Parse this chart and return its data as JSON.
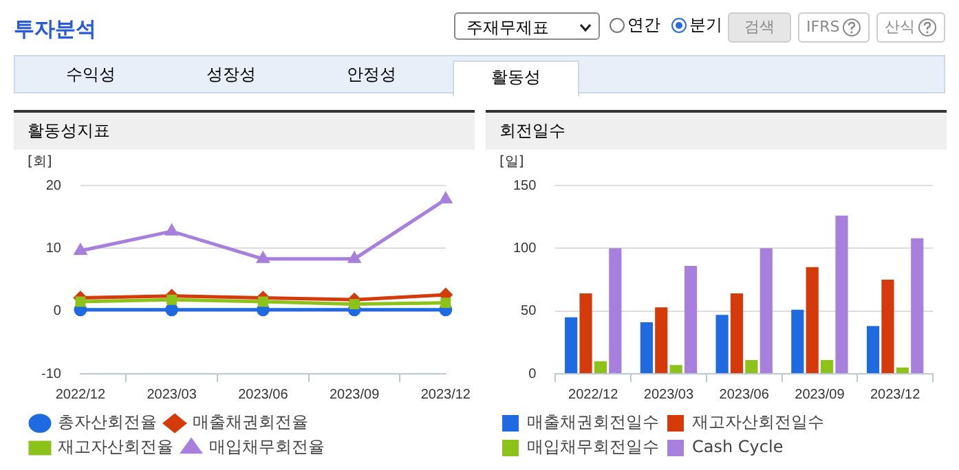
{
  "chart_data": [
    {
      "type": "line",
      "title": "활동성지표",
      "ylabel": "[회]",
      "annotations": [
        "투자분석",
        "주재무제표",
        "연간",
        "분기",
        "검색",
        "IFRS",
        "산식",
        "수익성",
        "성장성",
        "안정성",
        "활동성"
      ],
      "categories": [
        "2022/12",
        "2023/03",
        "2023/06",
        "2023/09",
        "2023/12"
      ],
      "series": [
        {
          "name": "총자산회전율",
          "color": "#1f6ae0",
          "marker": "circle",
          "values": [
            0.2,
            0.2,
            0.2,
            0.2,
            0.2
          ]
        },
        {
          "name": "매출채권회전율",
          "color": "#d43a0a",
          "marker": "diamond",
          "values": [
            2.1,
            2.4,
            2.1,
            1.8,
            2.6
          ]
        },
        {
          "name": "재고자산회전율",
          "color": "#8cc21a",
          "marker": "square",
          "values": [
            1.5,
            1.8,
            1.5,
            1.1,
            1.3
          ]
        },
        {
          "name": "매입채무회전율",
          "color": "#a77fdc",
          "marker": "triangle",
          "values": [
            9.6,
            12.7,
            8.3,
            8.3,
            17.8
          ]
        }
      ],
      "ylim": [
        -10,
        20
      ],
      "yticks": [
        -10,
        0,
        10,
        20
      ],
      "grid": "y",
      "legend": "bottom"
    },
    {
      "type": "bar",
      "title": "회전일수",
      "ylabel": "[일]",
      "categories": [
        "2022/12",
        "2023/03",
        "2023/06",
        "2023/09",
        "2023/12"
      ],
      "series": [
        {
          "name": "매출채권회전일수",
          "color": "#1f6ae0",
          "values": [
            45,
            41,
            47,
            51,
            38
          ]
        },
        {
          "name": "재고자산회전일수",
          "color": "#d43a0a",
          "values": [
            64,
            53,
            64,
            85,
            75
          ]
        },
        {
          "name": "매입채무회전일수",
          "color": "#8cc21a",
          "values": [
            10,
            7,
            11,
            11,
            5
          ]
        },
        {
          "name": "Cash Cycle",
          "color": "#a77fdc",
          "values": [
            100,
            86,
            100,
            126,
            108
          ]
        }
      ],
      "ylim": [
        0,
        150
      ],
      "yticks": [
        0,
        50,
        100,
        150
      ],
      "grid": "y",
      "legend": "bottom"
    }
  ]
}
